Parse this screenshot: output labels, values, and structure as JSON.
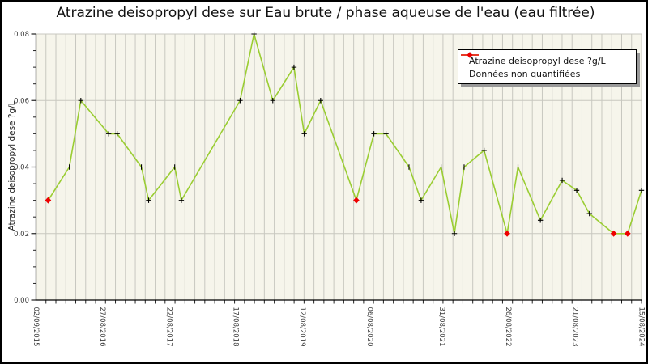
{
  "chart_data": {
    "type": "line",
    "title": "Atrazine deisopropyl dese sur Eau brute / phase aqueuse de l'eau (eau filtrée)",
    "ylabel": "Atrazine deisopropyl dese ?g/L",
    "xlabel": "",
    "ylim": [
      0,
      0.08
    ],
    "y_ticks": [
      {
        "label": "0.00",
        "value": 0.0
      },
      {
        "label": "0.02",
        "value": 0.02
      },
      {
        "label": "0.04",
        "value": 0.04
      },
      {
        "label": "0.06",
        "value": 0.06
      },
      {
        "label": "0.08",
        "value": 0.08
      }
    ],
    "y_minor_tick_step": 0.005,
    "x_ticks": [
      {
        "label": "02/09/2015",
        "pos": 0.0
      },
      {
        "label": "27/08/2016",
        "pos": 0.11
      },
      {
        "label": "22/08/2017",
        "pos": 0.22
      },
      {
        "label": "17/08/2018",
        "pos": 0.33
      },
      {
        "label": "12/08/2019",
        "pos": 0.44
      },
      {
        "label": "06/08/2020",
        "pos": 0.551
      },
      {
        "label": "31/08/2021",
        "pos": 0.67
      },
      {
        "label": "26/08/2022",
        "pos": 0.78
      },
      {
        "label": "21/08/2023",
        "pos": 0.89
      },
      {
        "label": "15/08/2024",
        "pos": 1.0
      }
    ],
    "grid": {
      "vertical_line_count": 61,
      "horizontal_at_major_y_ticks": true
    },
    "legend": {
      "position": "upper right",
      "items": [
        {
          "label": "Atrazine deisopropyl dese ?g/L",
          "marker": "black-plus-on-green-line",
          "color": "#9acd32"
        },
        {
          "label": "Données non quantifiées",
          "marker": "red-diamond",
          "color": "#ee0000"
        }
      ]
    },
    "series": [
      {
        "name": "Atrazine deisopropyl dese ?g/L",
        "points": [
          {
            "x": 0.02,
            "y": 0.03,
            "quantified": false
          },
          {
            "x": 0.055,
            "y": 0.04,
            "quantified": true
          },
          {
            "x": 0.074,
            "y": 0.06,
            "quantified": true
          },
          {
            "x": 0.12,
            "y": 0.05,
            "quantified": true
          },
          {
            "x": 0.134,
            "y": 0.05,
            "quantified": true
          },
          {
            "x": 0.174,
            "y": 0.04,
            "quantified": true
          },
          {
            "x": 0.186,
            "y": 0.03,
            "quantified": true
          },
          {
            "x": 0.229,
            "y": 0.04,
            "quantified": true
          },
          {
            "x": 0.24,
            "y": 0.03,
            "quantified": true
          },
          {
            "x": 0.337,
            "y": 0.06,
            "quantified": true
          },
          {
            "x": 0.36,
            "y": 0.08,
            "quantified": true
          },
          {
            "x": 0.391,
            "y": 0.06,
            "quantified": true
          },
          {
            "x": 0.426,
            "y": 0.07,
            "quantified": true
          },
          {
            "x": 0.443,
            "y": 0.05,
            "quantified": true
          },
          {
            "x": 0.47,
            "y": 0.06,
            "quantified": true
          },
          {
            "x": 0.529,
            "y": 0.03,
            "quantified": false
          },
          {
            "x": 0.558,
            "y": 0.05,
            "quantified": true
          },
          {
            "x": 0.578,
            "y": 0.05,
            "quantified": true
          },
          {
            "x": 0.616,
            "y": 0.04,
            "quantified": true
          },
          {
            "x": 0.636,
            "y": 0.03,
            "quantified": true
          },
          {
            "x": 0.669,
            "y": 0.04,
            "quantified": true
          },
          {
            "x": 0.691,
            "y": 0.02,
            "quantified": true
          },
          {
            "x": 0.707,
            "y": 0.04,
            "quantified": true
          },
          {
            "x": 0.74,
            "y": 0.045,
            "quantified": true
          },
          {
            "x": 0.778,
            "y": 0.02,
            "quantified": false
          },
          {
            "x": 0.796,
            "y": 0.04,
            "quantified": true
          },
          {
            "x": 0.833,
            "y": 0.024,
            "quantified": true
          },
          {
            "x": 0.869,
            "y": 0.036,
            "quantified": true
          },
          {
            "x": 0.893,
            "y": 0.033,
            "quantified": true
          },
          {
            "x": 0.914,
            "y": 0.026,
            "quantified": true
          },
          {
            "x": 0.954,
            "y": 0.02,
            "quantified": false
          },
          {
            "x": 0.977,
            "y": 0.02,
            "quantified": false
          },
          {
            "x": 1.0,
            "y": 0.033,
            "quantified": true
          }
        ]
      }
    ],
    "colors": {
      "line": "#9acd32",
      "marker": "#000000",
      "non_quantified": "#ee0000",
      "plot_background": "#f6f5eb",
      "gridline": "#c8c8c0",
      "spine": "#000000",
      "tick_label": "#3c3c3c"
    }
  }
}
